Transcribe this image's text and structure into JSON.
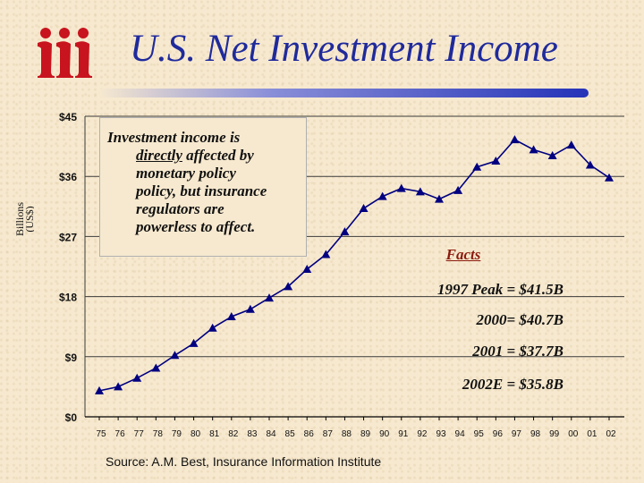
{
  "logo": {
    "icon": "iii-logo-icon",
    "color": "#c8141e"
  },
  "title": "U.S. Net Investment Income",
  "callout": {
    "line1": "Investment income is",
    "line2_underlined": "directly",
    "line2_rest": " affected by",
    "line3": "monetary policy",
    "line4": "policy, but insurance",
    "line5": "regulators are",
    "line6": "powerless to affect."
  },
  "facts": {
    "title": "Facts",
    "items": [
      "1997 Peak = $41.5B",
      "2000= $40.7B",
      "2001 = $37.7B",
      "2002E = $35.8B"
    ]
  },
  "source": "Source:  A.M. Best, Insurance Information Institute",
  "colors": {
    "line": "#000080",
    "title": "#1f2a9c",
    "facts_title": "#8b1a0e"
  },
  "chart_data": {
    "type": "line",
    "title": "U.S. Net Investment Income",
    "ylabel_line1": "Billions",
    "ylabel_line2": "(US$)",
    "xlabel": "",
    "ylim": [
      0,
      45
    ],
    "ytick_values": [
      0,
      9,
      18,
      27,
      36,
      45
    ],
    "ytick_labels": [
      "$0",
      "$9",
      "$18",
      "$27",
      "$36",
      "$45"
    ],
    "categories": [
      "75",
      "76",
      "77",
      "78",
      "79",
      "80",
      "81",
      "82",
      "83",
      "84",
      "85",
      "86",
      "87",
      "88",
      "89",
      "90",
      "91",
      "92",
      "93",
      "94",
      "95",
      "96",
      "97",
      "98",
      "99",
      "00",
      "01",
      "02"
    ],
    "values": [
      3.9,
      4.5,
      5.8,
      7.3,
      9.2,
      11.0,
      13.3,
      15.0,
      16.1,
      17.8,
      19.5,
      22.1,
      24.3,
      27.7,
      31.2,
      33.0,
      34.2,
      33.7,
      32.6,
      33.9,
      37.4,
      38.3,
      41.5,
      40.0,
      39.1,
      40.7,
      37.7,
      35.8
    ]
  }
}
